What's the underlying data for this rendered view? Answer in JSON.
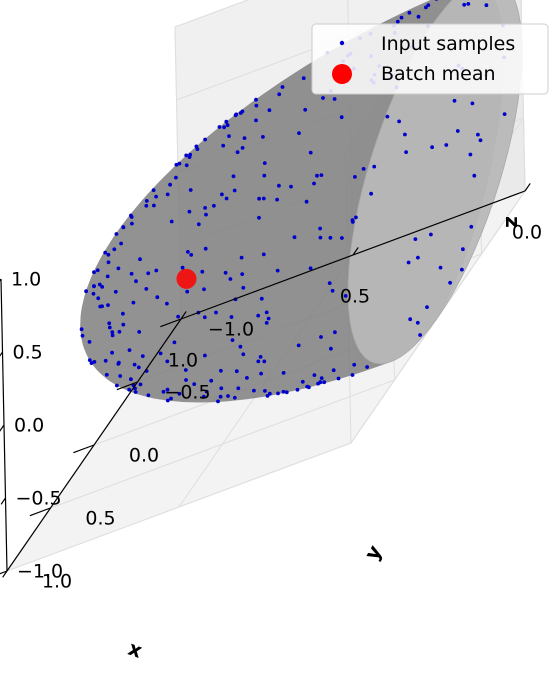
{
  "chart_data": {
    "type": "scatter",
    "projection": "3d",
    "xlabel": "x",
    "ylabel": "y",
    "zlabel": "z",
    "xlim": [
      0.0,
      1.0
    ],
    "ylim": [
      -1.0,
      1.0
    ],
    "zlim": [
      -1.0,
      1.0
    ],
    "xticks": [
      "0.0",
      "0.5",
      "1.0"
    ],
    "yticks": [
      "−1.0",
      "−0.5",
      "0.0",
      "0.5",
      "1.0"
    ],
    "zticks": [
      "−1.0",
      "−0.5",
      "0.0",
      "0.5",
      "1.0"
    ],
    "grid": true,
    "legend_placement": "top-right",
    "surface": {
      "shape": "unit hemisphere x ≥ 0",
      "color": "#808080",
      "opacity": 0.5
    },
    "series": [
      {
        "name": "Input samples",
        "marker": "dot",
        "color": "#0000cc",
        "count": 300,
        "distribution": "uniform on hemisphere x ≥ 0"
      },
      {
        "name": "Batch mean",
        "marker": "large-circle",
        "color": "#ff0000",
        "points": [
          [
            0.62,
            0.4,
            0.15
          ]
        ]
      }
    ]
  }
}
